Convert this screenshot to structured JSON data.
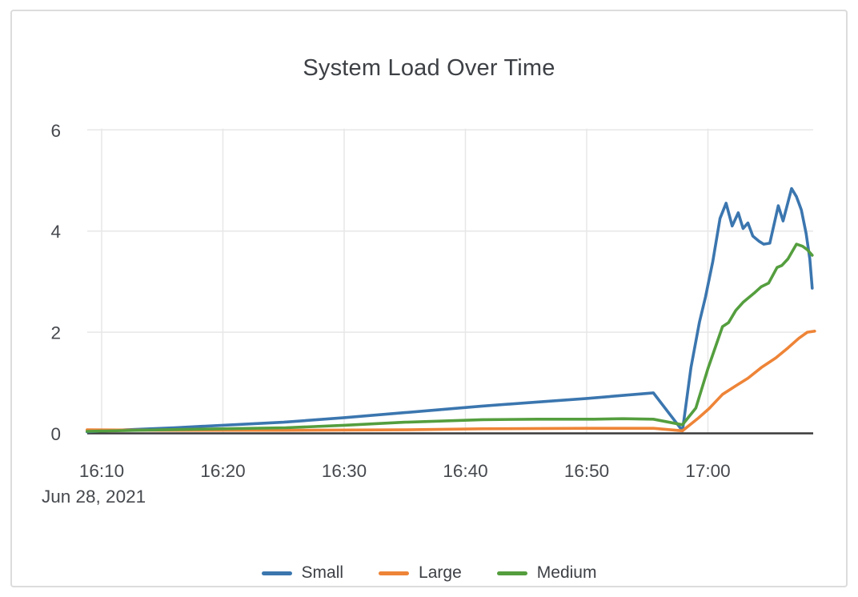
{
  "panel": {
    "title": "System Load Over Time"
  },
  "colors": {
    "small": "#3b76af",
    "large": "#ee8437",
    "medium": "#549e3e",
    "grid": "#e7e7e7",
    "axis_line": "#3a3a3a",
    "tick_text": "#45484d",
    "title_text": "#3d4045",
    "panel_border": "#dcdcdc"
  },
  "chart_data": {
    "type": "line",
    "title": "System Load Over Time",
    "xlabel": "",
    "ylabel": "",
    "grid": true,
    "x_axis": {
      "unit": "time",
      "date_label": "Jun 28, 2021",
      "tick_labels": [
        "16:10",
        "16:20",
        "16:30",
        "16:40",
        "16:50",
        "17:00"
      ],
      "tick_minutes": [
        10,
        20,
        30,
        40,
        50,
        60
      ],
      "range_minutes": [
        8.7,
        68.9
      ]
    },
    "y_axis": {
      "tick_labels": [
        "0",
        "2",
        "4",
        "6"
      ],
      "tick_values": [
        0,
        2,
        4,
        6
      ],
      "range": [
        0,
        6
      ]
    },
    "legend": {
      "position": "bottom-center",
      "entries": [
        "Small",
        "Large",
        "Medium"
      ]
    },
    "series": [
      {
        "name": "Small",
        "color": "#3b76af",
        "points": [
          [
            8.8,
            0.03
          ],
          [
            12,
            0.07
          ],
          [
            16,
            0.11
          ],
          [
            20,
            0.16
          ],
          [
            25,
            0.22
          ],
          [
            30,
            0.31
          ],
          [
            35,
            0.41
          ],
          [
            41.4,
            0.54
          ],
          [
            46,
            0.62
          ],
          [
            50,
            0.69
          ],
          [
            53,
            0.75
          ],
          [
            55.5,
            0.8
          ],
          [
            57.9,
            0.05
          ],
          [
            58.6,
            1.3
          ],
          [
            59.3,
            2.2
          ],
          [
            59.8,
            2.7
          ],
          [
            60.4,
            3.4
          ],
          [
            61.0,
            4.25
          ],
          [
            61.5,
            4.55
          ],
          [
            62.0,
            4.1
          ],
          [
            62.5,
            4.36
          ],
          [
            62.9,
            4.05
          ],
          [
            63.3,
            4.16
          ],
          [
            63.7,
            3.9
          ],
          [
            64.2,
            3.8
          ],
          [
            64.6,
            3.74
          ],
          [
            65.1,
            3.76
          ],
          [
            65.8,
            4.5
          ],
          [
            66.2,
            4.2
          ],
          [
            66.9,
            4.84
          ],
          [
            67.3,
            4.68
          ],
          [
            67.7,
            4.42
          ],
          [
            68.1,
            3.95
          ],
          [
            68.4,
            3.45
          ],
          [
            68.6,
            2.87
          ]
        ]
      },
      {
        "name": "Large",
        "color": "#ee8437",
        "points": [
          [
            8.8,
            0.07
          ],
          [
            15,
            0.06
          ],
          [
            25,
            0.06
          ],
          [
            35,
            0.07
          ],
          [
            41.4,
            0.09
          ],
          [
            50,
            0.1
          ],
          [
            55.5,
            0.1
          ],
          [
            57.9,
            0.05
          ],
          [
            59.2,
            0.3
          ],
          [
            60.1,
            0.49
          ],
          [
            61.2,
            0.77
          ],
          [
            62.3,
            0.94
          ],
          [
            63.3,
            1.09
          ],
          [
            64.4,
            1.3
          ],
          [
            65.6,
            1.49
          ],
          [
            66.6,
            1.69
          ],
          [
            67.5,
            1.88
          ],
          [
            68.2,
            2.0
          ],
          [
            68.8,
            2.02
          ]
        ]
      },
      {
        "name": "Medium",
        "color": "#549e3e",
        "points": [
          [
            8.8,
            0.04
          ],
          [
            15,
            0.07
          ],
          [
            20,
            0.09
          ],
          [
            25.2,
            0.11
          ],
          [
            30,
            0.16
          ],
          [
            35,
            0.22
          ],
          [
            41.4,
            0.27
          ],
          [
            46,
            0.28
          ],
          [
            50.6,
            0.28
          ],
          [
            53,
            0.29
          ],
          [
            55.5,
            0.28
          ],
          [
            57.9,
            0.17
          ],
          [
            59.0,
            0.5
          ],
          [
            60.0,
            1.28
          ],
          [
            61.2,
            2.11
          ],
          [
            61.7,
            2.19
          ],
          [
            62.3,
            2.43
          ],
          [
            62.9,
            2.59
          ],
          [
            63.8,
            2.77
          ],
          [
            64.4,
            2.9
          ],
          [
            65.0,
            2.97
          ],
          [
            65.7,
            3.28
          ],
          [
            66.1,
            3.32
          ],
          [
            66.6,
            3.45
          ],
          [
            67.3,
            3.74
          ],
          [
            67.8,
            3.7
          ],
          [
            68.2,
            3.63
          ],
          [
            68.6,
            3.52
          ]
        ]
      }
    ]
  }
}
